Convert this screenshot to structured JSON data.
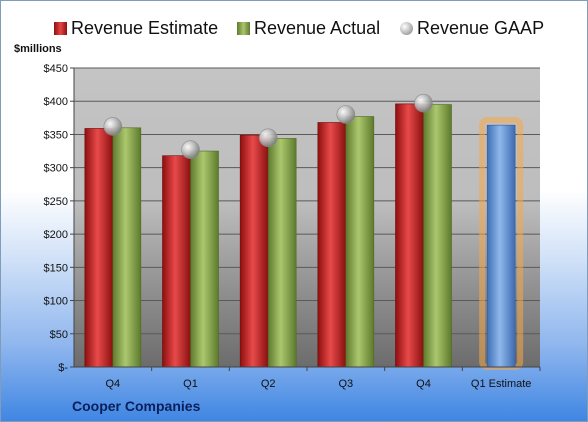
{
  "legend": {
    "estimate": "Revenue Estimate",
    "actual": "Revenue Actual",
    "gaap": "Revenue GAAP"
  },
  "unit_label": "$millions",
  "company": "Cooper Companies",
  "colors": {
    "estimate": "#d42a2a",
    "actual": "#8fae55",
    "gaap_marker": "#b9b9b9",
    "projection": "#6f9fd8",
    "projection_glow": "#f5a845"
  },
  "chart_data": {
    "type": "bar",
    "categories": [
      "Q4",
      "Q1",
      "Q2",
      "Q3",
      "Q4",
      "Q1 Estimate"
    ],
    "series": [
      {
        "name": "Revenue Estimate",
        "values": [
          359,
          318,
          349,
          368,
          396,
          null
        ]
      },
      {
        "name": "Revenue Actual",
        "values": [
          360,
          325,
          344,
          377,
          395,
          null
        ]
      },
      {
        "name": "Revenue GAAP",
        "values": [
          362,
          327,
          345,
          380,
          397,
          null
        ]
      }
    ],
    "projection": {
      "category": "Q1 Estimate",
      "value": 364
    },
    "ylim": [
      0,
      450
    ],
    "yticks": [
      0,
      50,
      100,
      150,
      200,
      250,
      300,
      350,
      400,
      450
    ],
    "ytick_labels": [
      "$-",
      "$50",
      "$100",
      "$150",
      "$200",
      "$250",
      "$300",
      "$350",
      "$400",
      "$450"
    ],
    "ylabel": "$millions",
    "xlabel": "",
    "legend_position": "top",
    "grid": true
  }
}
